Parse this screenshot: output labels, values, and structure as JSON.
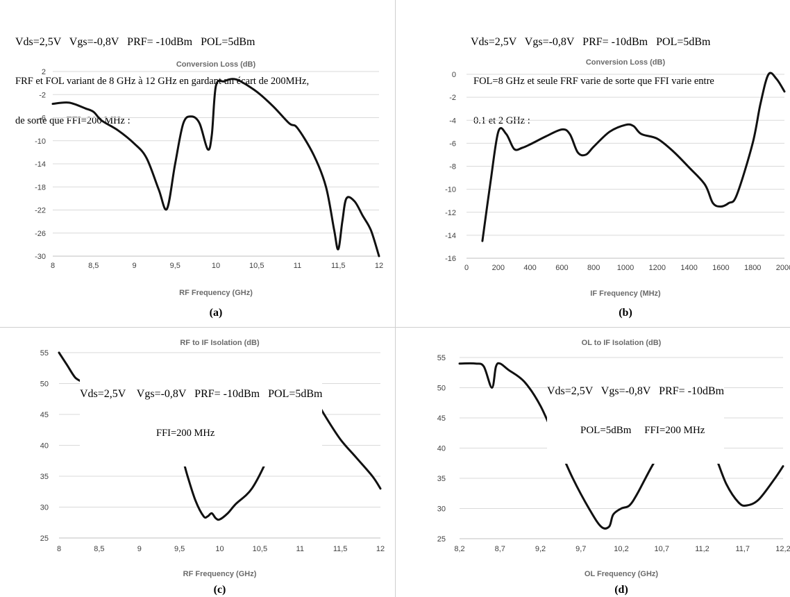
{
  "panels": [
    {
      "id": "a",
      "sub_label": "(a)",
      "conditions": [
        "Vds=2,5V   Vgs=-0,8V   PRF= -10dBm   POL=5dBm",
        "FRF et FOL variant de 8 GHz à 12 GHz en gardant un écart de 200MHz,",
        "de sorte que FFI=200 MHz :"
      ]
    },
    {
      "id": "b",
      "sub_label": "(b)",
      "conditions": [
        "Vds=2,5V   Vgs=-0,8V   PRF= -10dBm   POL=5dBm",
        "FOL=8 GHz et seule FRF varie de sorte que FFI varie entre",
        "0.1 et 2 GHz :"
      ]
    },
    {
      "id": "c",
      "sub_label": "(c)",
      "conditions": [
        "Vds=2,5V    Vgs=-0,8V   PRF= -10dBm   POL=5dBm",
        "FFI=200 MHz"
      ]
    },
    {
      "id": "d",
      "sub_label": "(d)",
      "conditions": [
        "Vds=2,5V   Vgs=-0,8V   PRF= -10dBm",
        "POL=5dBm     FFI=200 MHz"
      ]
    }
  ],
  "chart_data": [
    {
      "type": "line",
      "title": "Conversion Loss (dB)",
      "xlabel": "RF Frequency (GHz)",
      "ylabel": "",
      "xlim": [
        8,
        12
      ],
      "ylim": [
        -30,
        2
      ],
      "xticks": [
        "8",
        "8,5",
        "9",
        "9,5",
        "10",
        "10,5",
        "11",
        "11,5",
        "12"
      ],
      "yticks": [
        "2",
        "-2",
        "-6",
        "-10",
        "-14",
        "-18",
        "-22",
        "-26",
        "-30"
      ],
      "grid": "horizontal",
      "series": [
        {
          "x": [
            8.0,
            8.2,
            8.4,
            8.5,
            8.6,
            8.8,
            9.0,
            9.15,
            9.3,
            9.4,
            9.5,
            9.6,
            9.7,
            9.8,
            9.9,
            9.95,
            10.0,
            10.1,
            10.2,
            10.3,
            10.5,
            10.7,
            10.9,
            11.0,
            11.2,
            11.35,
            11.45,
            11.5,
            11.55,
            11.6,
            11.7,
            11.8,
            11.9,
            12.0
          ],
          "y": [
            -3.6,
            -3.4,
            -4.4,
            -5.0,
            -6.5,
            -8.2,
            -10.5,
            -13.0,
            -18.5,
            -21.8,
            -14.0,
            -7.0,
            -5.8,
            -7.0,
            -11.5,
            -9.0,
            -0.5,
            0.3,
            0.7,
            0.3,
            -1.5,
            -4.0,
            -7.0,
            -7.8,
            -12.5,
            -18.0,
            -25.5,
            -28.8,
            -24.0,
            -20.0,
            -20.5,
            -23.0,
            -25.5,
            -30.0
          ]
        }
      ]
    },
    {
      "type": "line",
      "title": "Conversion Loss (dB)",
      "xlabel": "IF Frequency (MHz)",
      "ylabel": "",
      "xlim": [
        0,
        2000
      ],
      "ylim": [
        -16,
        0
      ],
      "xticks": [
        "0",
        "200",
        "400",
        "600",
        "800",
        "1000",
        "1200",
        "1400",
        "1600",
        "1800",
        "2000"
      ],
      "yticks": [
        "0",
        "-2",
        "-4",
        "-6",
        "-8",
        "-10",
        "-12",
        "-14",
        "-16"
      ],
      "grid": "horizontal",
      "series": [
        {
          "x": [
            100,
            150,
            200,
            250,
            300,
            350,
            400,
            500,
            600,
            650,
            700,
            750,
            800,
            900,
            1000,
            1050,
            1100,
            1200,
            1300,
            1400,
            1500,
            1550,
            1600,
            1650,
            1700,
            1800,
            1850,
            1900,
            1950,
            2000
          ],
          "y": [
            -14.5,
            -9.5,
            -5.0,
            -5.2,
            -6.5,
            -6.4,
            -6.1,
            -5.4,
            -4.8,
            -5.2,
            -6.8,
            -7.0,
            -6.3,
            -5.0,
            -4.4,
            -4.5,
            -5.2,
            -5.6,
            -6.7,
            -8.1,
            -9.6,
            -11.2,
            -11.5,
            -11.2,
            -10.5,
            -6.0,
            -2.5,
            0.0,
            -0.4,
            -1.5
          ]
        }
      ]
    },
    {
      "type": "line",
      "title": "RF to IF Isolation (dB)",
      "xlabel": "RF Frequency (GHz)",
      "ylabel": "",
      "xlim": [
        8,
        12
      ],
      "ylim": [
        25,
        55
      ],
      "xticks": [
        "8",
        "8,5",
        "9",
        "9,5",
        "10",
        "10,5",
        "11",
        "11,5",
        "12"
      ],
      "yticks": [
        "55",
        "50",
        "45",
        "40",
        "35",
        "30",
        "25"
      ],
      "grid": "horizontal",
      "series": [
        {
          "x": [
            8.0,
            8.1,
            8.2,
            8.3,
            8.35,
            8.4,
            8.45,
            8.5,
            8.6,
            8.8,
            9.0,
            9.2,
            9.4,
            9.5,
            9.6,
            9.7,
            9.8,
            9.85,
            9.9,
            9.95,
            10.0,
            10.1,
            10.2,
            10.4,
            10.6,
            10.8,
            10.9,
            11.0,
            11.1,
            11.3,
            11.5,
            11.7,
            11.9,
            12.0
          ],
          "y": [
            55.0,
            53.0,
            51.0,
            50.0,
            48.0,
            46.0,
            47.0,
            48.0,
            47.5,
            46.0,
            44.5,
            43.0,
            41.5,
            39.5,
            35.0,
            31.0,
            28.5,
            28.5,
            29.0,
            28.2,
            28.0,
            29.0,
            30.5,
            33.0,
            38.0,
            44.5,
            48.0,
            50.0,
            49.5,
            45.0,
            41.0,
            38.0,
            35.0,
            33.0
          ]
        }
      ]
    },
    {
      "type": "line",
      "title": "OL to IF Isolation (dB)",
      "xlabel": "OL Frequency (GHz)",
      "ylabel": "",
      "xlim": [
        8.2,
        12.2
      ],
      "ylim": [
        25,
        55
      ],
      "xticks": [
        "8,2",
        "8,7",
        "9,2",
        "9,7",
        "10,2",
        "10,7",
        "11,2",
        "11,7",
        "12,2"
      ],
      "yticks": [
        "55",
        "50",
        "45",
        "40",
        "35",
        "30",
        "25"
      ],
      "grid": "horizontal",
      "series": [
        {
          "x": [
            8.2,
            8.4,
            8.5,
            8.6,
            8.65,
            8.7,
            8.8,
            9.0,
            9.2,
            9.4,
            9.6,
            9.8,
            9.95,
            10.05,
            10.1,
            10.2,
            10.3,
            10.4,
            10.6,
            10.8,
            11.0,
            11.2,
            11.35,
            11.5,
            11.65,
            11.75,
            11.9,
            12.1,
            12.2
          ],
          "y": [
            54.0,
            54.0,
            53.5,
            50.0,
            53.5,
            54.0,
            53.0,
            51.0,
            47.0,
            41.0,
            35.0,
            30.0,
            27.0,
            27.0,
            29.0,
            30.0,
            30.5,
            32.5,
            37.5,
            41.5,
            42.5,
            42.0,
            39.0,
            34.0,
            31.0,
            30.5,
            31.5,
            35.0,
            37.0
          ]
        }
      ]
    }
  ]
}
